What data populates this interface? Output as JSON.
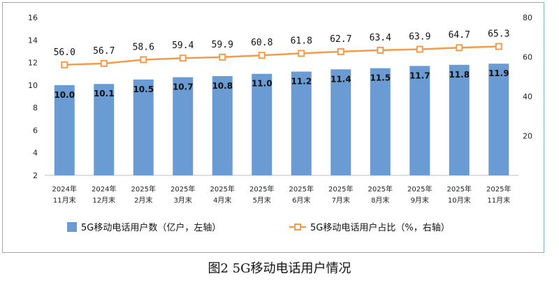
{
  "chart_data": {
    "type": "bar",
    "categories": [
      [
        "2024年",
        "11月末"
      ],
      [
        "2024年",
        "12月末"
      ],
      [
        "2025年",
        "2月末"
      ],
      [
        "2025年",
        "3月末"
      ],
      [
        "2025年",
        "4月末"
      ],
      [
        "2025年",
        "5月末"
      ],
      [
        "2025年",
        "6月末"
      ],
      [
        "2025年",
        "7月末"
      ],
      [
        "2025年",
        "8月末"
      ],
      [
        "2025年",
        "9月末"
      ],
      [
        "2025年",
        "10月末"
      ],
      [
        "2025年",
        "11月末"
      ]
    ],
    "series": [
      {
        "name": "5G移动电话用户数（亿户，左轴）",
        "type": "bar",
        "axis": "left",
        "values": [
          10.0,
          10.1,
          10.5,
          10.7,
          10.8,
          11.0,
          11.2,
          11.4,
          11.5,
          11.7,
          11.8,
          11.9
        ],
        "labels": [
          "10.0",
          "10.1",
          "10.5",
          "10.7",
          "10.8",
          "11.0",
          "11.2",
          "11.4",
          "11.5",
          "11.7",
          "11.8",
          "11.9"
        ]
      },
      {
        "name": "5G移动电话用户占比（%，右轴）",
        "type": "line",
        "axis": "right",
        "values": [
          56.0,
          56.7,
          58.6,
          59.4,
          59.9,
          60.8,
          61.8,
          62.7,
          63.4,
          63.9,
          64.7,
          65.3
        ],
        "labels": [
          "56.0",
          "56.7",
          "58.6",
          "59.4",
          "59.9",
          "60.8",
          "61.8",
          "62.7",
          "63.4",
          "63.9",
          "64.7",
          "65.3"
        ]
      }
    ],
    "left_axis": {
      "min": 2,
      "max": 16,
      "ticks": [
        "2",
        "4",
        "6",
        "8",
        "10",
        "12",
        "14",
        "16"
      ],
      "tick_values": [
        2,
        4,
        6,
        8,
        10,
        12,
        14,
        16
      ]
    },
    "right_axis": {
      "min": 0,
      "max": 80,
      "ticks": [
        "20",
        "40",
        "60",
        "80"
      ],
      "tick_values": [
        20,
        40,
        60,
        80
      ]
    },
    "legend_position": "bottom",
    "title": "图2 5G移动电话用户情况",
    "colors": {
      "bar": "#6a9bd3",
      "line": "#f29b4a",
      "marker_fill": "#ffffff",
      "frame": "#7fb3c9"
    }
  }
}
